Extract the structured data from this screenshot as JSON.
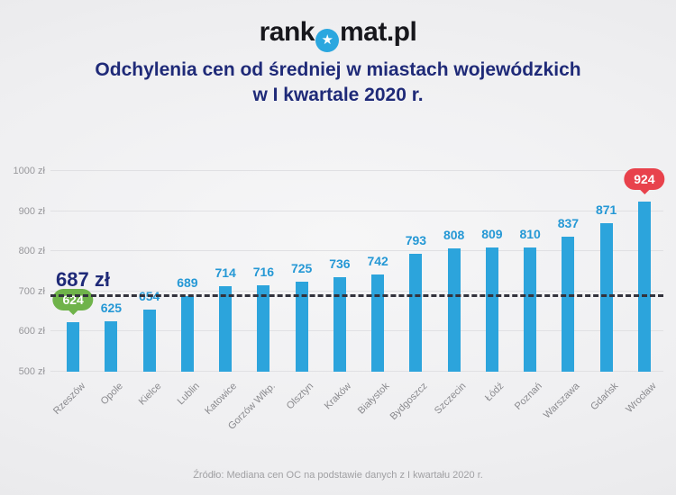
{
  "colors": {
    "navy": "#1f2a78",
    "bar_blue": "#2ca4dc",
    "value_label_blue": "#2598d5",
    "badge_green": "#6fb34a",
    "badge_red": "#e8424c",
    "dashed_line": "#32323c",
    "logo_circle_blue": "#2ba7df"
  },
  "logo": {
    "text_before": "rank",
    "text_after": "mat.pl",
    "icon": "star-circle-icon",
    "star_glyph": "★"
  },
  "title": {
    "line1": "Odchylenia cen od średniej w miastach wojewódzkich",
    "line2": "w I kwartale 2020 r."
  },
  "chart_data": {
    "type": "bar",
    "title": "Odchylenia cen od średniej w miastach wojewódzkich w I kwartale 2020 r.",
    "categories": [
      "Rzeszów",
      "Opole",
      "Kielce",
      "Lublin",
      "Katowice",
      "Gorzów Wlkp.",
      "Olsztyn",
      "Kraków",
      "Białystok",
      "Bydgoszcz",
      "Szczecin",
      "Łódź",
      "Poznań",
      "Warszawa",
      "Gdańsk",
      "Wrocław"
    ],
    "values": [
      624,
      625,
      654,
      689,
      714,
      716,
      725,
      736,
      742,
      793,
      808,
      809,
      810,
      837,
      871,
      924
    ],
    "xlabel": "",
    "ylabel": "",
    "ylim": [
      500,
      1000
    ],
    "ytick_step": 100,
    "yticks": [
      "500 zł",
      "600 zł",
      "700 zł",
      "800 zł",
      "900 zł",
      "1000 zł"
    ],
    "grid": true,
    "legend": false,
    "average_line": {
      "value": 687,
      "label": "687 zł"
    },
    "min_badge": {
      "index": 0,
      "value": "624"
    },
    "max_badge": {
      "index": 15,
      "value": "924"
    }
  },
  "footer": {
    "source": "Źródło: Mediana cen OC na podstawie danych z I kwartału 2020 r."
  }
}
